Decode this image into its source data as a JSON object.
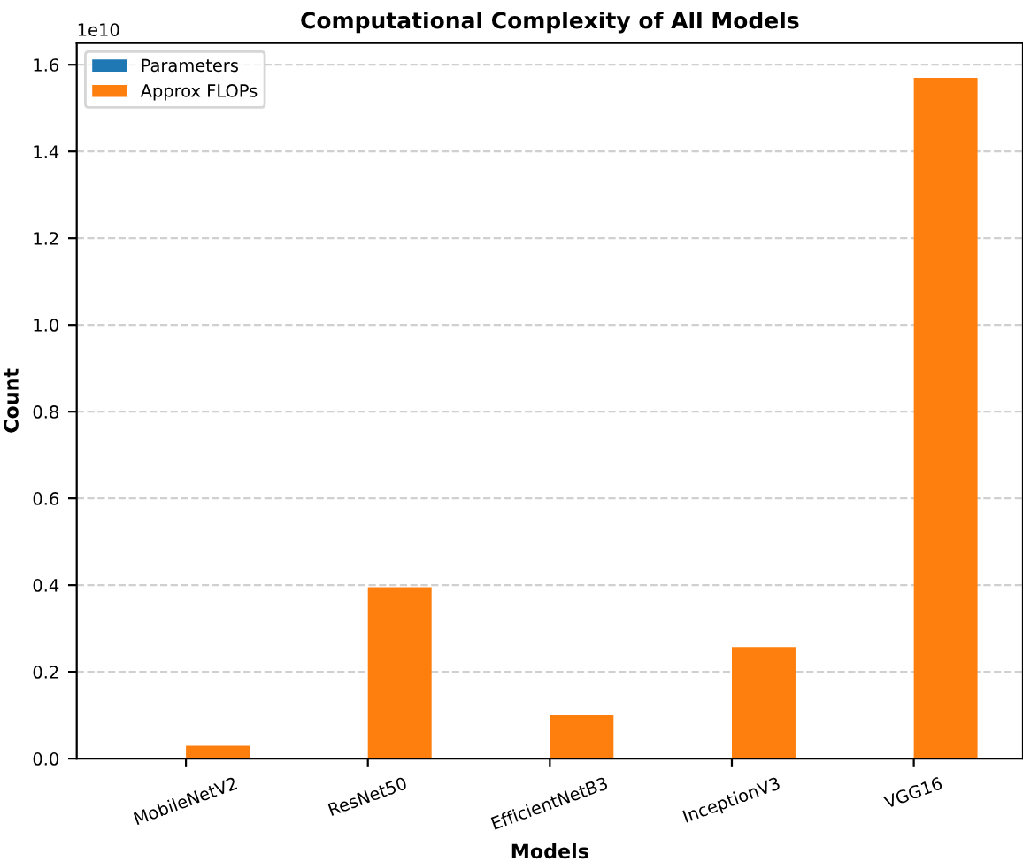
{
  "chart_data": {
    "type": "bar",
    "title": "Computational Complexity of All Models",
    "xlabel": "Models",
    "ylabel": "Count",
    "categories": [
      "MobileNetV2",
      "ResNet50",
      "EfficientNetB3",
      "InceptionV3",
      "VGG16"
    ],
    "series": [
      {
        "name": "Parameters",
        "color": "#1f77b4",
        "values": [
          0.0,
          null,
          null,
          null,
          null
        ]
      },
      {
        "name": "Approx FLOPs",
        "color": "#ff7f0e",
        "values": [
          0.03,
          0.395,
          0.1,
          0.257,
          1.57
        ]
      }
    ],
    "ylim": [
      0.0,
      1.65
    ],
    "yticks": [
      {
        "value": 0,
        "label": "0.0"
      },
      0.2,
      0.4,
      0.6,
      0.8,
      {
        "value": 1,
        "label": "1.0"
      },
      1.2,
      1.4,
      1.6
    ],
    "annotations": [
      "1e10"
    ],
    "grid": "y",
    "legend": "top left"
  }
}
